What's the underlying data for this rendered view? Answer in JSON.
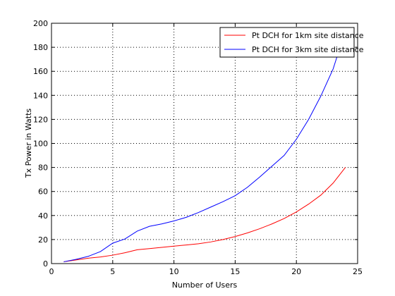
{
  "chart_data": {
    "type": "line",
    "title": "",
    "xlabel": "Number of Users",
    "ylabel": "Tx Power in Watts",
    "xlim": [
      0,
      25
    ],
    "ylim": [
      0,
      200
    ],
    "xticks": [
      0,
      5,
      10,
      15,
      20,
      25
    ],
    "yticks": [
      0,
      20,
      40,
      60,
      80,
      100,
      120,
      140,
      160,
      180,
      200
    ],
    "grid": true,
    "legend_position": "top-right",
    "series": [
      {
        "name": "Pt DCH for 1km site distance",
        "color": "#ff0000",
        "x": [
          1,
          2,
          3,
          4,
          5,
          6,
          7,
          8,
          9,
          10,
          11,
          12,
          13,
          14,
          15,
          16,
          17,
          18,
          19,
          20,
          21,
          22,
          23,
          24
        ],
        "y": [
          1.5,
          3,
          4.5,
          5.5,
          7,
          9,
          11.5,
          12.5,
          13.5,
          14.5,
          15.5,
          16.5,
          18,
          20,
          22.5,
          25.5,
          29,
          33,
          37.5,
          43,
          49.5,
          57,
          67,
          80
        ]
      },
      {
        "name": "Pt DCH for 3km site distance",
        "color": "#0000ff",
        "x": [
          1,
          2,
          3,
          4,
          5,
          6,
          7,
          8,
          9,
          10,
          11,
          12,
          13,
          14,
          15,
          16,
          17,
          18,
          19,
          20,
          21,
          22,
          23,
          23.5
        ],
        "y": [
          1.5,
          3.5,
          6,
          10,
          17,
          20.5,
          27,
          31,
          33,
          35.5,
          38.5,
          42.5,
          47,
          51.5,
          56.5,
          63.5,
          72,
          81,
          90,
          103.5,
          120,
          139.5,
          162,
          178
        ]
      }
    ]
  }
}
